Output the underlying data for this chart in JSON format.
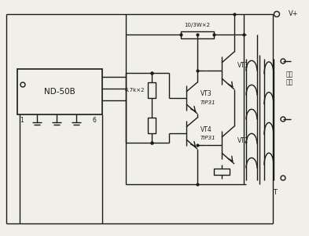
{
  "bg_color": "#f0efe8",
  "line_color": "#1a1a1a",
  "lw": 1.0,
  "labels": {
    "ND50B": "ND-50B",
    "VT1": "VT1",
    "VT2": "VT2",
    "VT3": "VT3",
    "VT3b": "TIP31",
    "VT4": "VT4",
    "VT4b": "TIP31",
    "R1": "10/3W×2",
    "R2": "4.7k×2",
    "Vplus": "V+",
    "T": "T",
    "inv1": "逆变",
    "inv2": "输出",
    "pin1": "1",
    "pin6": "6"
  }
}
